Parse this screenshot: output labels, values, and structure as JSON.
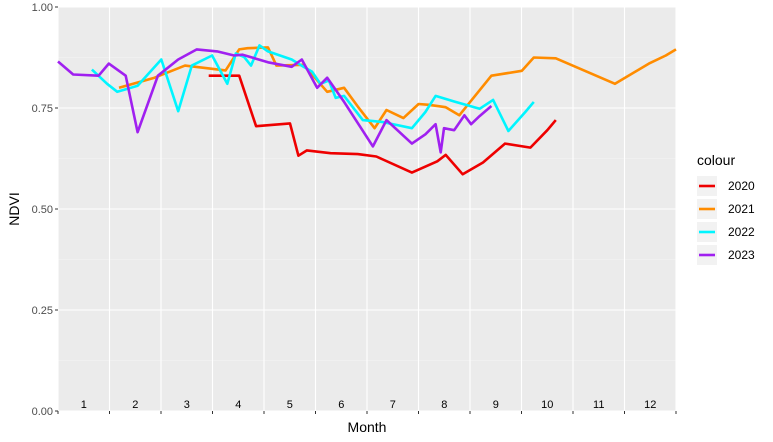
{
  "chart_data": {
    "type": "line",
    "xlabel": "Month",
    "ylabel": "NDVI",
    "xlim": [
      1,
      366
    ],
    "ylim": [
      0,
      1
    ],
    "y_ticks": [
      "0.00",
      "0.25",
      "0.50",
      "0.75",
      "1.00"
    ],
    "grid": true,
    "month_labels": [
      "1",
      "2",
      "3",
      "4",
      "5",
      "6",
      "7",
      "8",
      "9",
      "10",
      "11",
      "12"
    ],
    "legend": {
      "title": "colour",
      "position": "right"
    },
    "series": [
      {
        "name": "2020",
        "color": "#EE0000",
        "x": [
          90,
          108,
          118,
          138,
          143,
          148,
          162,
          178,
          189,
          210,
          225,
          230,
          240,
          252,
          265,
          280,
          290,
          295
        ],
        "y": [
          0.83,
          0.83,
          0.705,
          0.712,
          0.632,
          0.645,
          0.638,
          0.636,
          0.63,
          0.59,
          0.618,
          0.634,
          0.586,
          0.615,
          0.662,
          0.652,
          0.695,
          0.72
        ]
      },
      {
        "name": "2021",
        "color": "#FF8C00",
        "x": [
          37,
          58,
          76,
          100,
          108,
          113,
          125,
          130,
          146,
          160,
          170,
          178,
          188,
          195,
          205,
          214,
          220,
          230,
          238,
          257,
          275,
          282,
          295,
          330,
          350,
          360,
          366
        ],
        "y": [
          0.8,
          0.825,
          0.855,
          0.843,
          0.895,
          0.898,
          0.9,
          0.855,
          0.857,
          0.79,
          0.8,
          0.754,
          0.7,
          0.745,
          0.725,
          0.76,
          0.758,
          0.752,
          0.732,
          0.83,
          0.842,
          0.875,
          0.873,
          0.81,
          0.86,
          0.88,
          0.895
        ]
      },
      {
        "name": "2022",
        "color": "#00F5FF",
        "x": [
          21,
          30,
          36,
          48,
          62,
          72,
          80,
          92,
          101,
          106,
          111,
          115,
          120,
          125,
          139,
          146,
          151,
          156,
          161,
          165,
          170,
          181,
          193,
          210,
          218,
          224,
          235,
          250,
          258,
          267,
          277,
          282
        ],
        "y": [
          0.845,
          0.81,
          0.79,
          0.805,
          0.87,
          0.742,
          0.855,
          0.88,
          0.81,
          0.885,
          0.876,
          0.855,
          0.905,
          0.89,
          0.87,
          0.852,
          0.84,
          0.81,
          0.818,
          0.775,
          0.78,
          0.72,
          0.715,
          0.7,
          0.74,
          0.78,
          0.766,
          0.748,
          0.77,
          0.693,
          0.74,
          0.765
        ]
      },
      {
        "name": "2023",
        "color": "#A020F0",
        "x": [
          1,
          10,
          25,
          31,
          41,
          48,
          60,
          72,
          83,
          95,
          105,
          110,
          125,
          139,
          145,
          154,
          160,
          170,
          187,
          195,
          210,
          218,
          224,
          227,
          229,
          235,
          241,
          245,
          250,
          257
        ],
        "y": [
          0.865,
          0.833,
          0.83,
          0.86,
          0.83,
          0.69,
          0.83,
          0.87,
          0.895,
          0.89,
          0.88,
          0.882,
          0.863,
          0.852,
          0.87,
          0.8,
          0.825,
          0.765,
          0.655,
          0.72,
          0.662,
          0.685,
          0.71,
          0.64,
          0.7,
          0.695,
          0.732,
          0.71,
          0.73,
          0.755
        ]
      }
    ]
  }
}
